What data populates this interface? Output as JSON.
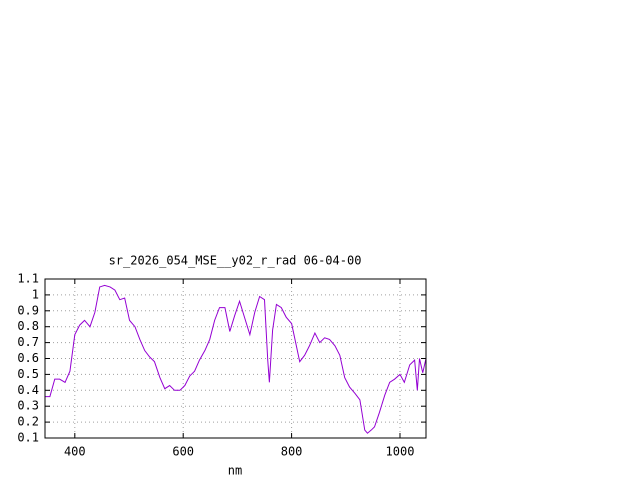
{
  "chart_data": {
    "type": "line",
    "title": "sr_2026_054_MSE__y02_r_rad 06-04-00",
    "xlabel": "nm",
    "x": [
      345,
      354,
      363,
      372,
      382,
      391,
      400,
      409,
      418,
      428,
      437,
      446,
      455,
      465,
      474,
      483,
      492,
      501,
      511,
      520,
      529,
      538,
      547,
      557,
      566,
      575,
      584,
      594,
      603,
      612,
      621,
      630,
      640,
      649,
      658,
      667,
      677,
      686,
      695,
      704,
      713,
      723,
      732,
      741,
      750,
      756,
      759,
      765,
      772,
      781,
      790,
      800,
      815,
      824,
      833,
      843,
      852,
      861,
      870,
      880,
      889,
      898,
      907,
      917,
      926,
      935,
      940,
      947,
      953,
      962,
      972,
      981,
      990,
      1000,
      1008,
      1018,
      1027,
      1032,
      1036,
      1042,
      1048
    ],
    "series": [
      {
        "color": "#9400d3",
        "values": [
          0.36,
          0.36,
          0.47,
          0.47,
          0.45,
          0.52,
          0.75,
          0.81,
          0.84,
          0.8,
          0.89,
          1.05,
          1.06,
          1.05,
          1.03,
          0.97,
          0.98,
          0.84,
          0.8,
          0.72,
          0.65,
          0.61,
          0.58,
          0.48,
          0.41,
          0.43,
          0.4,
          0.4,
          0.43,
          0.49,
          0.52,
          0.59,
          0.65,
          0.72,
          0.84,
          0.92,
          0.92,
          0.77,
          0.87,
          0.96,
          0.86,
          0.75,
          0.89,
          0.99,
          0.97,
          0.59,
          0.45,
          0.78,
          0.94,
          0.92,
          0.86,
          0.82,
          0.58,
          0.62,
          0.68,
          0.76,
          0.7,
          0.73,
          0.72,
          0.68,
          0.62,
          0.48,
          0.42,
          0.38,
          0.34,
          0.15,
          0.13,
          0.15,
          0.17,
          0.26,
          0.37,
          0.45,
          0.47,
          0.5,
          0.45,
          0.56,
          0.59,
          0.4,
          0.6,
          0.51,
          0.6
        ]
      }
    ],
    "xlim": [
      345,
      1048
    ],
    "xticks": [
      400,
      600,
      800,
      1000
    ],
    "ylim": [
      0.1,
      1.1
    ],
    "yticks": [
      0.1,
      0.2,
      0.3,
      0.4,
      0.5,
      0.6,
      0.7,
      0.8,
      0.9,
      1,
      1.1
    ],
    "grid": true
  }
}
